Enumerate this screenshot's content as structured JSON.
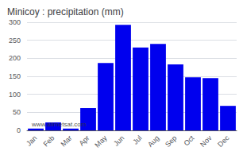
{
  "chart_data": {
    "type": "bar",
    "title": "Minicoy : precipitation (mm)",
    "categories": [
      "Jan",
      "Feb",
      "Mar",
      "Apr",
      "May",
      "Jun",
      "Jul",
      "Aug",
      "Sep",
      "Oct",
      "Nov",
      "Dec"
    ],
    "values": [
      5,
      22,
      5,
      62,
      187,
      293,
      230,
      240,
      183,
      147,
      145,
      68
    ],
    "color": "#0000ee",
    "ylim": [
      0,
      300
    ],
    "yticks": [
      0,
      50,
      100,
      150,
      200,
      250,
      300
    ],
    "grid": true,
    "annotations": [
      "www.allmetsat.com"
    ]
  }
}
